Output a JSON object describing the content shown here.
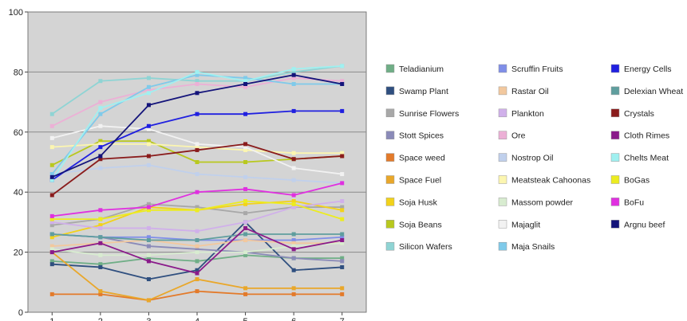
{
  "chart_data": {
    "type": "line",
    "title": "",
    "xlabel": "",
    "ylabel": "",
    "x": [
      1,
      2,
      3,
      4,
      5,
      6,
      7
    ],
    "ylim": [
      0,
      100
    ],
    "yticks": [
      0,
      20,
      40,
      60,
      80,
      100
    ],
    "grid": "horizontal",
    "plot_background": "#d4d4d4",
    "legend_position": "right",
    "series": [
      {
        "name": "Teladianium",
        "color": "#6fae86",
        "values": [
          17,
          16,
          18,
          17,
          19,
          18,
          18
        ]
      },
      {
        "name": "Swamp Plant",
        "color": "#2f4f7f",
        "values": [
          16,
          15,
          11,
          14,
          30,
          14,
          15
        ]
      },
      {
        "name": "Sunrise Flowers",
        "color": "#a8a8a8",
        "values": [
          29,
          31,
          36,
          35,
          33,
          35,
          35
        ]
      },
      {
        "name": "Stott Spices",
        "color": "#8a8ab8",
        "values": [
          26,
          25,
          22,
          21,
          20,
          18,
          17
        ]
      },
      {
        "name": "Space weed",
        "color": "#e37a2a",
        "values": [
          6,
          6,
          4,
          7,
          6,
          6,
          6
        ]
      },
      {
        "name": "Space Fuel",
        "color": "#e9a72a",
        "values": [
          20,
          7,
          4,
          11,
          8,
          8,
          8
        ]
      },
      {
        "name": "Soja Husk",
        "color": "#f2d21b",
        "values": [
          25,
          29,
          35,
          34,
          36,
          37,
          34
        ]
      },
      {
        "name": "Soja Beans",
        "color": "#b8c81e",
        "values": [
          49,
          57,
          57,
          50,
          50,
          51,
          52
        ]
      },
      {
        "name": "Silicon Wafers",
        "color": "#8fd4d4",
        "values": [
          66,
          77,
          78,
          77,
          77,
          80,
          82
        ]
      },
      {
        "name": "Scruffin Fruits",
        "color": "#7f8ee8",
        "values": [
          26,
          25,
          25,
          24,
          24,
          24,
          25
        ]
      },
      {
        "name": "Rastar Oil",
        "color": "#f2c89e",
        "values": [
          22,
          23,
          24,
          22,
          24,
          23,
          23
        ]
      },
      {
        "name": "Plankton",
        "color": "#d0b0ea",
        "values": [
          30,
          28,
          28,
          27,
          30,
          35,
          37
        ]
      },
      {
        "name": "Ore",
        "color": "#ecb0d6",
        "values": [
          62,
          70,
          74,
          76,
          75,
          78,
          77
        ]
      },
      {
        "name": "Nostrop Oil",
        "color": "#c0d0ec",
        "values": [
          46,
          48,
          49,
          46,
          45,
          44,
          43
        ]
      },
      {
        "name": "Meatsteak Cahoonas",
        "color": "#fcf6b0",
        "values": [
          55,
          56,
          56,
          55,
          54,
          53,
          53
        ]
      },
      {
        "name": "Massom powder",
        "color": "#d8ecd0",
        "values": [
          21,
          19,
          19,
          20,
          20,
          22,
          23
        ]
      },
      {
        "name": "Majaglit",
        "color": "#f2f2f2",
        "values": [
          58,
          62,
          61,
          56,
          55,
          48,
          46
        ]
      },
      {
        "name": "Maja Snails",
        "color": "#7fcaea",
        "values": [
          46,
          66,
          75,
          79,
          78,
          76,
          76
        ]
      },
      {
        "name": "Energy Cells",
        "color": "#2020e0",
        "values": [
          44,
          55,
          62,
          66,
          66,
          67,
          67
        ]
      },
      {
        "name": "Delexian Wheat",
        "color": "#5f9e9e",
        "values": [
          26,
          25,
          24,
          24,
          26,
          26,
          26
        ]
      },
      {
        "name": "Crystals",
        "color": "#8a1c1c",
        "values": [
          39,
          51,
          52,
          54,
          56,
          51,
          52
        ]
      },
      {
        "name": "Cloth Rimes",
        "color": "#8a1a8a",
        "values": [
          20,
          23,
          17,
          13,
          28,
          21,
          24
        ]
      },
      {
        "name": "Chelts Meat",
        "color": "#a0f0f0",
        "values": [
          44,
          68,
          73,
          80,
          77,
          81,
          82
        ]
      },
      {
        "name": "BoGas",
        "color": "#ecec20",
        "values": [
          31,
          31,
          34,
          34,
          37,
          36,
          31
        ]
      },
      {
        "name": "BoFu",
        "color": "#e030e0",
        "values": [
          32,
          34,
          35,
          40,
          41,
          39,
          43
        ]
      },
      {
        "name": "Argnu beef",
        "color": "#14147a",
        "values": [
          45,
          52,
          69,
          73,
          76,
          79,
          76
        ]
      }
    ]
  }
}
